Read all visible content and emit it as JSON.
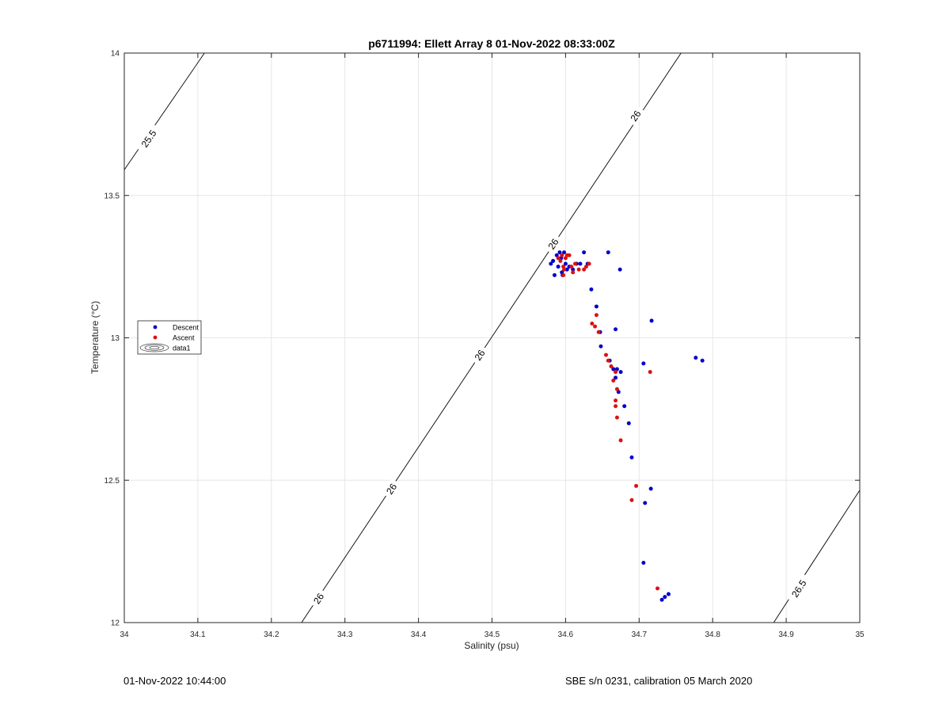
{
  "footer": {
    "left": "01-Nov-2022 10:44:00",
    "right": "SBE s/n 0231, calibration 05 March 2020"
  },
  "colors": {
    "descent": "#0000cc",
    "ascent": "#dd1111",
    "grid": "#e6e6e6",
    "contour": "#000000"
  },
  "chart_data": {
    "type": "scatter",
    "title": "p6711994: Ellett Array 8 01-Nov-2022 08:33:00Z",
    "xlabel": "Salinity (psu)",
    "ylabel": "Temperature (°C)",
    "xlim": [
      34,
      35
    ],
    "ylim": [
      12,
      14
    ],
    "xticks": [
      34,
      34.1,
      34.2,
      34.3,
      34.4,
      34.5,
      34.6,
      34.7,
      34.8,
      34.9,
      35
    ],
    "yticks": [
      12,
      12.5,
      13,
      13.5,
      14
    ],
    "xtick_labels": [
      "34",
      "34.1",
      "34.2",
      "34.3",
      "34.4",
      "34.5",
      "34.6",
      "34.7",
      "34.8",
      "34.9",
      "35"
    ],
    "ytick_labels": [
      "12",
      "12.5",
      "13",
      "13.5",
      "14"
    ],
    "grid": true,
    "legend_position": "left-middle",
    "legend": [
      "Descent",
      "Ascent",
      "data1"
    ],
    "series": [
      {
        "name": "Descent",
        "color": "#0000cc",
        "points": [
          [
            34.58,
            13.26
          ],
          [
            34.583,
            13.27
          ],
          [
            34.585,
            13.22
          ],
          [
            34.588,
            13.29
          ],
          [
            34.59,
            13.25
          ],
          [
            34.592,
            13.3
          ],
          [
            34.594,
            13.28
          ],
          [
            34.595,
            13.23
          ],
          [
            34.596,
            13.22
          ],
          [
            34.598,
            13.3
          ],
          [
            34.6,
            13.26
          ],
          [
            34.602,
            13.24
          ],
          [
            34.605,
            13.25
          ],
          [
            34.61,
            13.24
          ],
          [
            34.615,
            13.26
          ],
          [
            34.62,
            13.26
          ],
          [
            34.625,
            13.3
          ],
          [
            34.63,
            13.26
          ],
          [
            34.658,
            13.3
          ],
          [
            34.674,
            13.24
          ],
          [
            34.635,
            13.17
          ],
          [
            34.642,
            13.11
          ],
          [
            34.647,
            13.02
          ],
          [
            34.668,
            13.03
          ],
          [
            34.717,
            13.06
          ],
          [
            34.648,
            12.97
          ],
          [
            34.66,
            12.92
          ],
          [
            34.665,
            12.89
          ],
          [
            34.67,
            12.89
          ],
          [
            34.675,
            12.88
          ],
          [
            34.706,
            12.91
          ],
          [
            34.777,
            12.93
          ],
          [
            34.786,
            12.92
          ],
          [
            34.668,
            12.86
          ],
          [
            34.672,
            12.81
          ],
          [
            34.68,
            12.76
          ],
          [
            34.686,
            12.7
          ],
          [
            34.69,
            12.58
          ],
          [
            34.716,
            12.47
          ],
          [
            34.708,
            12.42
          ],
          [
            34.706,
            12.21
          ],
          [
            34.735,
            12.09
          ],
          [
            34.74,
            12.1
          ],
          [
            34.731,
            12.08
          ]
        ]
      },
      {
        "name": "Ascent",
        "color": "#dd1111",
        "points": [
          [
            34.59,
            13.28
          ],
          [
            34.593,
            13.27
          ],
          [
            34.595,
            13.29
          ],
          [
            34.597,
            13.25
          ],
          [
            34.597,
            13.22
          ],
          [
            34.598,
            13.24
          ],
          [
            34.6,
            13.28
          ],
          [
            34.602,
            13.29
          ],
          [
            34.605,
            13.29
          ],
          [
            34.608,
            13.25
          ],
          [
            34.61,
            13.23
          ],
          [
            34.613,
            13.26
          ],
          [
            34.618,
            13.24
          ],
          [
            34.625,
            13.24
          ],
          [
            34.628,
            13.25
          ],
          [
            34.632,
            13.26
          ],
          [
            34.642,
            13.08
          ],
          [
            34.636,
            13.05
          ],
          [
            34.64,
            13.04
          ],
          [
            34.645,
            13.02
          ],
          [
            34.655,
            12.94
          ],
          [
            34.658,
            12.92
          ],
          [
            34.662,
            12.9
          ],
          [
            34.668,
            12.88
          ],
          [
            34.665,
            12.85
          ],
          [
            34.67,
            12.82
          ],
          [
            34.668,
            12.78
          ],
          [
            34.668,
            12.76
          ],
          [
            34.67,
            12.72
          ],
          [
            34.675,
            12.64
          ],
          [
            34.715,
            12.88
          ],
          [
            34.696,
            12.48
          ],
          [
            34.69,
            12.43
          ],
          [
            34.725,
            12.12
          ]
        ]
      }
    ],
    "isopycnals": [
      {
        "label": "25.5",
        "segments": [
          [
            [
              34.0,
              13.59
            ],
            [
              34.109,
              14.0
            ]
          ]
        ],
        "label_positions": [
          [
            34.033,
            13.7
          ]
        ]
      },
      {
        "label": "26",
        "segments": [
          [
            [
              34.241,
              12.0
            ],
            [
              34.757,
              14.0
            ]
          ]
        ],
        "label_positions": [
          [
            34.264,
            12.085
          ],
          [
            34.363,
            12.47
          ],
          [
            34.483,
            12.94
          ],
          [
            34.583,
            13.33
          ],
          [
            34.695,
            13.78
          ]
        ]
      },
      {
        "label": "26.5",
        "segments": [
          [
            [
              34.883,
              12.0
            ],
            [
              35.0,
              12.465
            ]
          ]
        ],
        "label_positions": [
          [
            34.917,
            12.12
          ]
        ]
      }
    ]
  }
}
